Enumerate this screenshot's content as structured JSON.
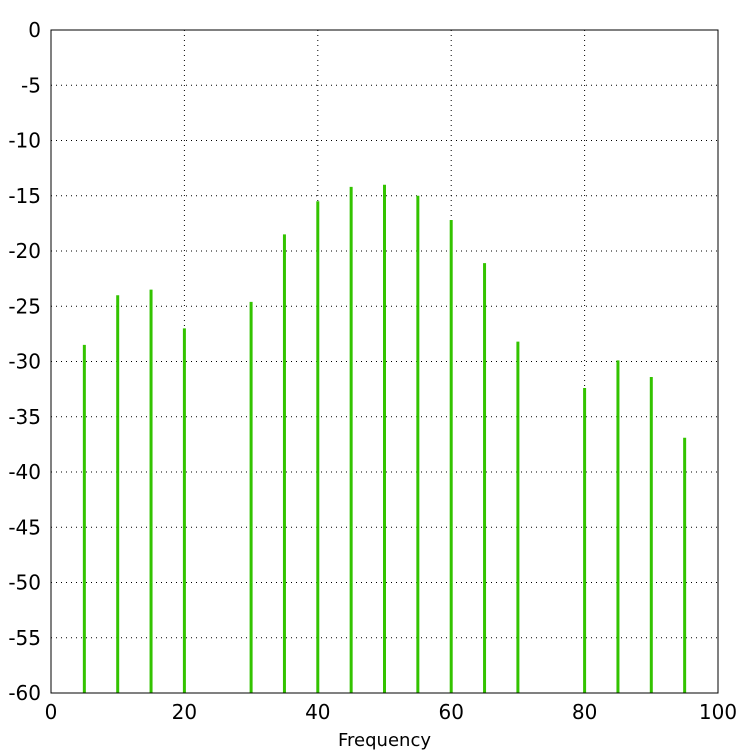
{
  "chart_data": {
    "type": "bar",
    "title": "",
    "xlabel": "Frequency",
    "ylabel": "",
    "xlim": [
      0,
      100
    ],
    "ylim": [
      -60,
      0
    ],
    "xticks": [
      0,
      20,
      40,
      60,
      80,
      100
    ],
    "yticks": [
      0,
      -5,
      -10,
      -15,
      -20,
      -25,
      -30,
      -35,
      -40,
      -45,
      -50,
      -55,
      -60
    ],
    "x_grid_values": [
      0,
      20,
      40,
      60,
      80,
      100
    ],
    "y_grid_values": [
      0,
      -5,
      -10,
      -15,
      -20,
      -25,
      -30,
      -35,
      -40,
      -45,
      -50,
      -55,
      -60
    ],
    "grid": true,
    "legend": "none",
    "color": "#33c300",
    "series": [
      {
        "x": [
          5,
          10,
          15,
          20,
          30,
          35,
          40,
          45,
          50,
          55,
          60,
          65,
          70,
          80,
          85,
          90,
          95
        ],
        "values": [
          -28.5,
          -24.0,
          -23.5,
          -27.0,
          -24.6,
          -18.5,
          -15.5,
          -14.2,
          -14.0,
          -15.0,
          -17.2,
          -21.1,
          -28.2,
          -32.4,
          -29.9,
          -31.4,
          -36.9
        ]
      }
    ]
  }
}
